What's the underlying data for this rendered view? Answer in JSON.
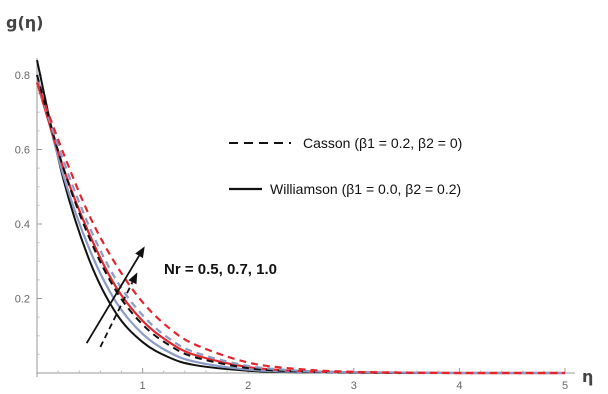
{
  "chart_data": {
    "type": "line",
    "title": "",
    "ylabel": "g(η)",
    "xlabel": "η",
    "xlim": [
      0,
      5
    ],
    "ylim": [
      0,
      0.85
    ],
    "x_ticks": [
      1,
      2,
      3,
      4,
      5
    ],
    "y_ticks": [
      0.2,
      0.4,
      0.6,
      0.8
    ],
    "legend_placement": "right",
    "legend": [
      {
        "label": "Casson (β1 = 0.2, β2 = 0)",
        "style": "dashed"
      },
      {
        "label": "Williamson (β1 = 0.0, β2 = 0.2)",
        "style": "solid"
      }
    ],
    "annotation": "Nr = 0.5, 0.7, 1.0",
    "x": [
      0,
      0.25,
      0.5,
      0.75,
      1.0,
      1.25,
      1.5,
      2.0,
      2.5,
      3.0,
      3.5,
      4.0,
      5.0
    ],
    "series": [
      {
        "color": "#111111",
        "style": "solid",
        "values": [
          0.84,
          0.52,
          0.3,
          0.16,
          0.083,
          0.042,
          0.021,
          0.006,
          0.002,
          0.001,
          0.0,
          0.0,
          0.0
        ]
      },
      {
        "color": "#8a9bc7",
        "style": "solid",
        "values": [
          0.8,
          0.53,
          0.33,
          0.19,
          0.105,
          0.056,
          0.03,
          0.009,
          0.003,
          0.001,
          0.0,
          0.0,
          0.0
        ]
      },
      {
        "color": "#e3262d",
        "style": "solid",
        "values": [
          0.78,
          0.55,
          0.37,
          0.23,
          0.14,
          0.083,
          0.048,
          0.016,
          0.005,
          0.002,
          0.001,
          0.0,
          0.0
        ]
      },
      {
        "color": "#111111",
        "style": "dashed",
        "values": [
          0.8,
          0.55,
          0.36,
          0.22,
          0.13,
          0.075,
          0.042,
          0.013,
          0.004,
          0.001,
          0.0,
          0.0,
          0.0
        ]
      },
      {
        "color": "#8a9bc7",
        "style": "dashed",
        "values": [
          0.78,
          0.57,
          0.39,
          0.25,
          0.155,
          0.093,
          0.055,
          0.019,
          0.006,
          0.002,
          0.001,
          0.0,
          0.0
        ]
      },
      {
        "color": "#e3262d",
        "style": "dashed",
        "values": [
          0.78,
          0.59,
          0.42,
          0.29,
          0.19,
          0.121,
          0.076,
          0.028,
          0.01,
          0.003,
          0.001,
          0.0,
          0.0
        ]
      }
    ],
    "arrows": [
      {
        "from": [
          0.47,
          0.08
        ],
        "to": [
          1.02,
          0.34
        ],
        "style": "solid"
      },
      {
        "from": [
          0.6,
          0.07
        ],
        "to": [
          0.95,
          0.27
        ],
        "style": "dashed"
      }
    ]
  }
}
